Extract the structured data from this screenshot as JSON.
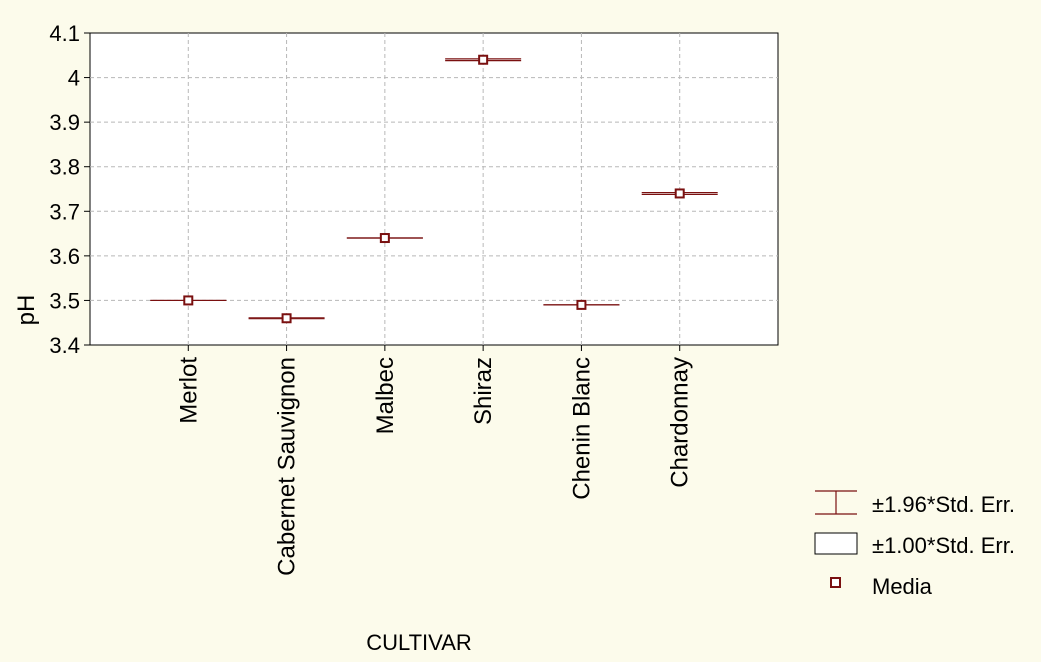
{
  "chart_data": {
    "type": "scatter",
    "xlabel": "CULTIVAR",
    "ylabel": "pH",
    "categories": [
      "Merlot",
      "Cabernet Sauvignon",
      "Malbec",
      "Shiraz",
      "Chenin Blanc",
      "Chardonnay"
    ],
    "series": [
      {
        "name": "Media",
        "values": [
          3.5,
          3.46,
          3.64,
          4.04,
          3.49,
          3.74
        ],
        "ci_1_96_se": [
          0.0,
          0.001,
          0.0,
          0.002,
          0.0,
          0.002
        ],
        "ci_1_00_se": [
          0.0,
          0.0005,
          0.0,
          0.001,
          0.0,
          0.001
        ]
      }
    ],
    "ylim": [
      3.4,
      4.1
    ],
    "yticks": [
      "3.4",
      "3.5",
      "3.6",
      "3.7",
      "3.8",
      "3.9",
      "4",
      "4.1"
    ],
    "grid": true,
    "legend_position": "bottom-right",
    "legend": [
      {
        "label": "±1.96*Std. Err.",
        "symbol": "whisker"
      },
      {
        "label": "±1.00*Std. Err.",
        "symbol": "box"
      },
      {
        "label": "Media",
        "symbol": "square-marker"
      }
    ]
  },
  "colors": {
    "background": "#fcfbeb",
    "plot_area": "#ffffff",
    "marker": "#7a1010",
    "grid": "#b8b8b8"
  }
}
